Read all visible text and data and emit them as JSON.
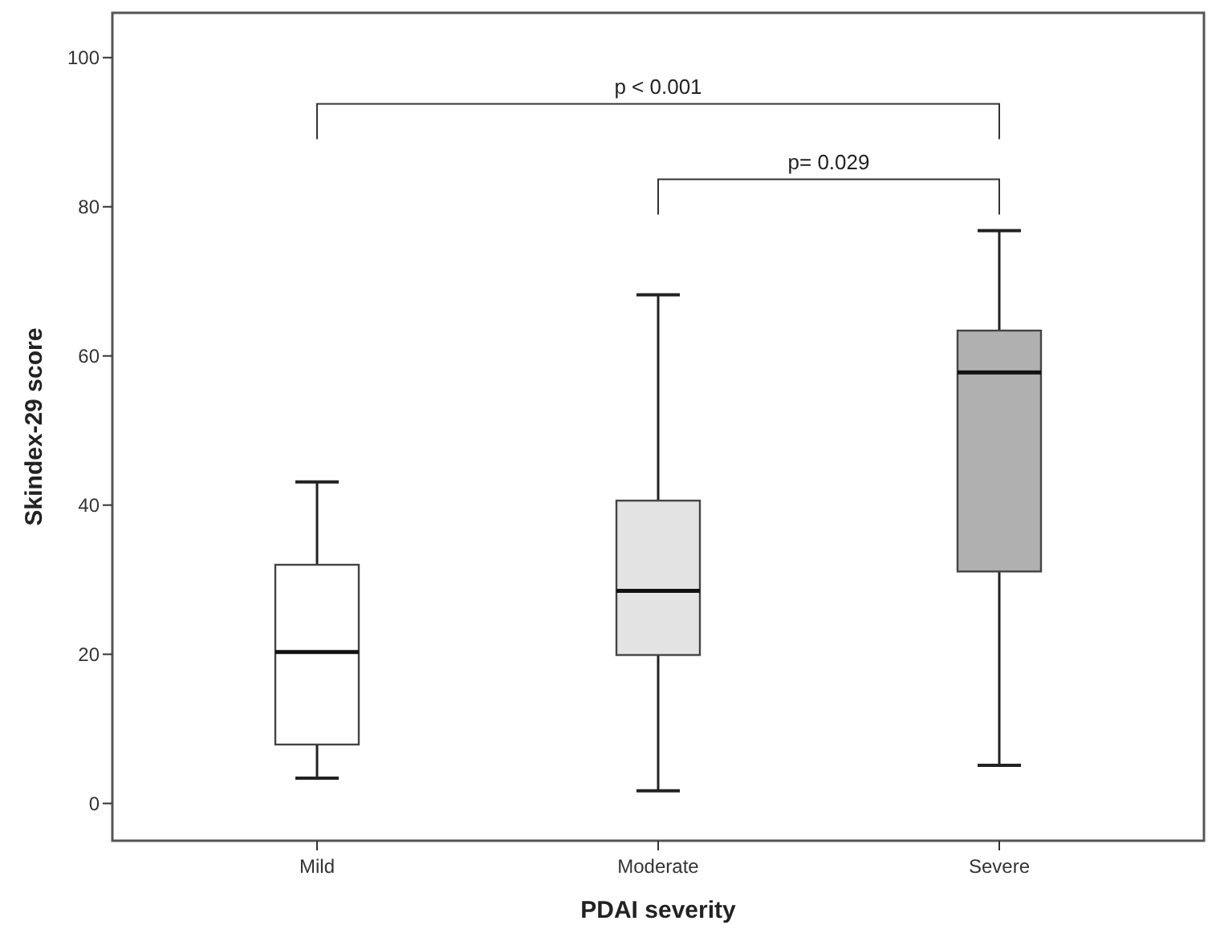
{
  "chart_data": {
    "type": "box",
    "xlabel": "PDAI severity",
    "ylabel": "Skindex-29 score",
    "categories": [
      "Mild",
      "Moderate",
      "Severe"
    ],
    "boxes": [
      {
        "low": 3.4,
        "q1": 7.9,
        "median": 20.3,
        "q3": 32.0,
        "high": 43.1
      },
      {
        "low": 1.7,
        "q1": 19.9,
        "median": 28.5,
        "q3": 40.6,
        "high": 68.2
      },
      {
        "low": 5.1,
        "q1": 31.1,
        "median": 57.8,
        "q3": 63.4,
        "high": 76.8
      }
    ],
    "colors": [
      "#ffffff",
      "#e3e3e3",
      "#b0b0b0"
    ],
    "ylim": [
      -5,
      106
    ],
    "yticks": [
      0,
      20,
      40,
      60,
      80,
      100
    ],
    "annotations": [
      "p < 0.001",
      "p= 0.029"
    ],
    "grid": false
  }
}
